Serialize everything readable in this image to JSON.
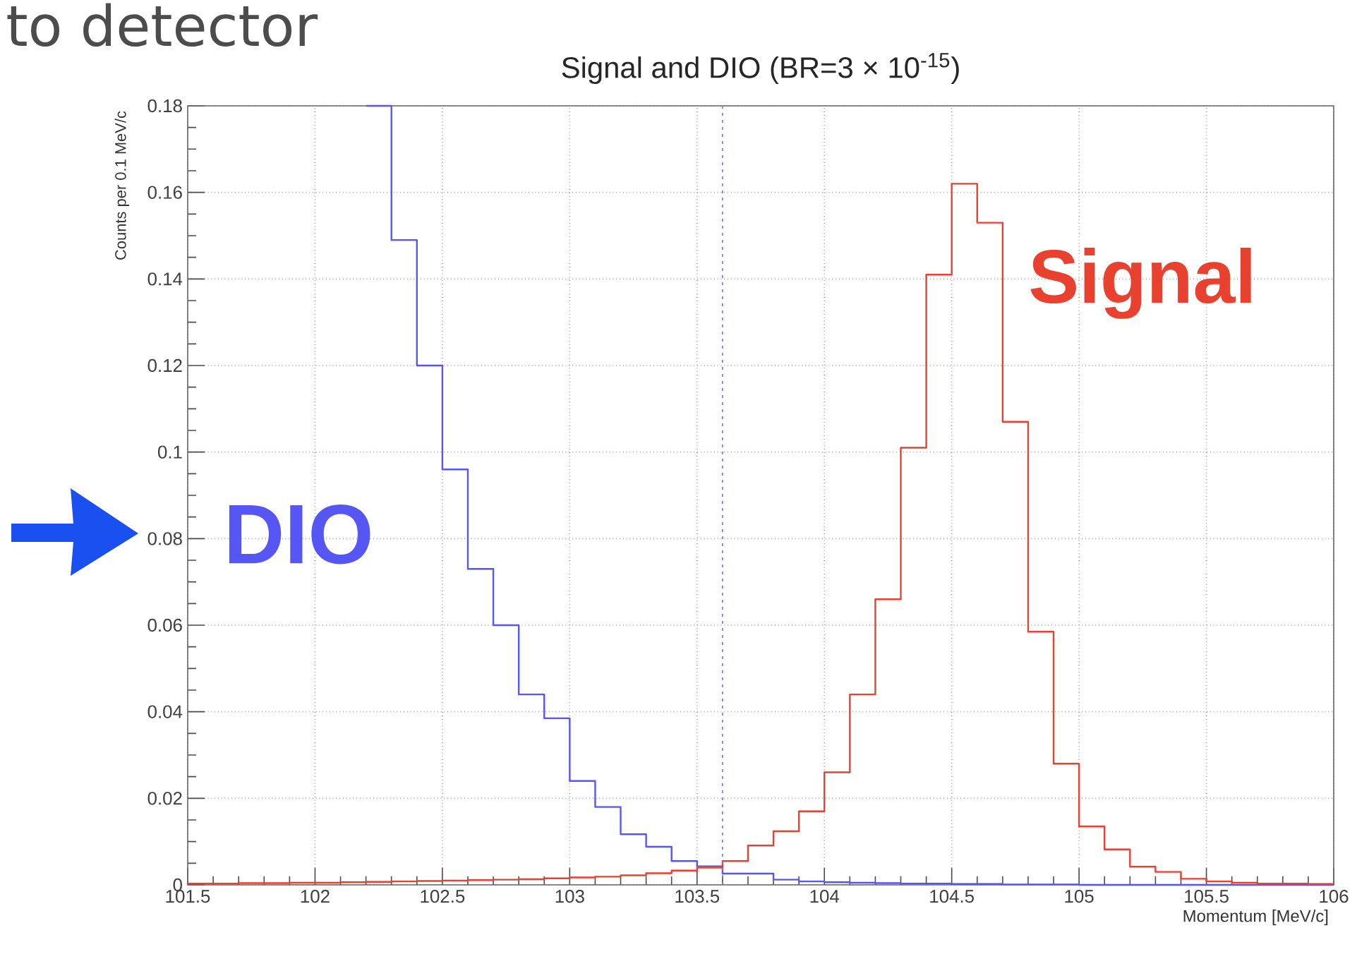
{
  "chart_data": {
    "type": "histogram",
    "title": "Signal and DIO (BR=3 × 10$^{-15}$)",
    "xlabel": "Momentum [MeV/c]",
    "ylabel": "Counts per 0.1 MeV/c",
    "annotations": [
      "to detector"
    ],
    "bins": [
      101.5,
      101.6,
      101.7,
      101.8,
      101.9,
      102.0,
      102.1,
      102.2,
      102.3,
      102.4,
      102.5,
      102.6,
      102.7,
      102.8,
      102.9,
      103.0,
      103.1,
      103.2,
      103.3,
      103.4,
      103.5,
      103.6,
      103.7,
      103.8,
      103.9,
      104.0,
      104.1,
      104.2,
      104.3,
      104.4,
      104.5,
      104.6,
      104.7,
      104.8,
      104.9,
      105.0,
      105.1,
      105.2,
      105.3,
      105.4,
      105.5,
      105.6,
      105.7,
      105.8,
      105.9,
      106.0
    ],
    "series": [
      {
        "name": "DIO",
        "color": "#5656f5",
        "bins": [
          102.2,
          102.3,
          102.4,
          102.5,
          102.6,
          102.7,
          102.8,
          102.9,
          103.0,
          103.1,
          103.2,
          103.3,
          103.4,
          103.5,
          103.6,
          103.7,
          103.8,
          103.9,
          104.0,
          104.1,
          104.2,
          104.3,
          104.4,
          104.5,
          104.6,
          104.7,
          104.8,
          104.9,
          105.0,
          105.1,
          105.2,
          105.3,
          105.4,
          105.5,
          105.6,
          105.7,
          105.8,
          105.9,
          106.0
        ],
        "values": [
          0.18,
          0.149,
          0.12,
          0.096,
          0.073,
          0.06,
          0.044,
          0.0385,
          0.024,
          0.018,
          0.0117,
          0.0088,
          0.0055,
          0.0043,
          0.0026,
          0.0026,
          0.0012,
          0.0008,
          0.0006,
          0.0005,
          0.0004,
          0.0003,
          0.0003,
          0.0002,
          0.0002,
          0.0001,
          0.0001,
          0.0001,
          0,
          0,
          0,
          0,
          0,
          0,
          0,
          0,
          0,
          0
        ]
      },
      {
        "name": "Signal",
        "color": "#e8412f",
        "values": [
          0.0003,
          0.0003,
          0.0004,
          0.0004,
          0.0005,
          0.0005,
          0.0006,
          0.0007,
          0.0008,
          0.0009,
          0.001,
          0.0011,
          0.0012,
          0.0013,
          0.0015,
          0.0017,
          0.0019,
          0.0022,
          0.0027,
          0.0033,
          0.004,
          0.0055,
          0.0091,
          0.0124,
          0.017,
          0.026,
          0.044,
          0.066,
          0.101,
          0.141,
          0.162,
          0.153,
          0.107,
          0.0585,
          0.028,
          0.0135,
          0.0082,
          0.0042,
          0.003,
          0.0014,
          0.0008,
          0.0005,
          0.0003,
          0.0003,
          0.0002
        ]
      }
    ],
    "xlim": [
      101.5,
      106
    ],
    "ylim": [
      0,
      0.18
    ],
    "xticks": [
      101.5,
      102,
      102.5,
      103,
      103.5,
      104,
      104.5,
      105,
      105.5,
      106
    ],
    "yticks": [
      0,
      0.02,
      0.04,
      0.06,
      0.08,
      0.1,
      0.12,
      0.14,
      0.16,
      0.18
    ],
    "grid": true,
    "ref_lines": [
      {
        "axis": "x",
        "value": 103.6,
        "color": "#7070ff",
        "line_style": "dotted"
      }
    ]
  }
}
